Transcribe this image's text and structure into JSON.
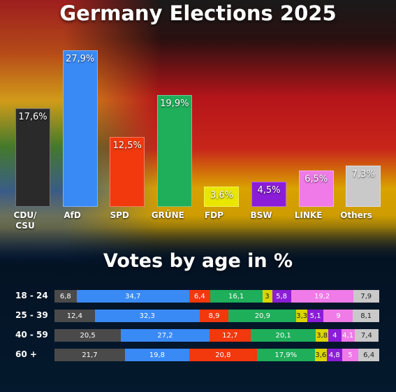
{
  "chart_data": [
    {
      "type": "bar",
      "title": "Germany Elections 2025",
      "categories": [
        "CDU/ CSU",
        "AfD",
        "SPD",
        "GRÜNE",
        "FDP",
        "BSW",
        "LINKE",
        "Others"
      ],
      "values": [
        17.6,
        27.9,
        12.5,
        19.9,
        3.6,
        4.5,
        6.5,
        7.3
      ],
      "value_labels": [
        "17,6%",
        "27,9%",
        "12,5%",
        "19,9%",
        "3,6%",
        "4,5%",
        "6,5%",
        "7,3%"
      ],
      "colors": [
        "#2a2a2a",
        "#3a8af5",
        "#f2380d",
        "#1fae5a",
        "#e9e600",
        "#8b1dd8",
        "#f07ae8",
        "#c9c9c9"
      ]
    },
    {
      "type": "stacked-barh",
      "title": "Votes by age in %",
      "categories": [
        "18 - 24",
        "25 - 39",
        "40 - 59",
        "60 +"
      ],
      "series": [
        {
          "color": "#4a4a4a",
          "values": [
            6.8,
            12.4,
            20.5,
            21.7
          ],
          "value_labels": [
            "6,8",
            "12,4",
            "20,5",
            "21,7"
          ]
        },
        {
          "color": "#3a8af5",
          "values": [
            34.7,
            32.3,
            27.2,
            19.8
          ],
          "value_labels": [
            "34,7",
            "32,3",
            "27,2",
            "19,8"
          ]
        },
        {
          "color": "#f2380d",
          "values": [
            6.4,
            8.9,
            12.7,
            20.8
          ],
          "value_labels": [
            "6,4",
            "8,9",
            "12,7",
            "20,8"
          ]
        },
        {
          "color": "#1fae5a",
          "values": [
            16.1,
            20.9,
            20.1,
            17.9
          ],
          "value_labels": [
            "16,1",
            "20,9",
            "20,1",
            "17,9%"
          ]
        },
        {
          "color": "#d9d600",
          "values": [
            3,
            3.3,
            3.8,
            3.6
          ],
          "value_labels": [
            "3",
            "3,3",
            "3,8",
            "3,6"
          ]
        },
        {
          "color": "#8b1dd8",
          "values": [
            5.8,
            5.1,
            4,
            4.8
          ],
          "value_labels": [
            "5,8",
            "5,1",
            "4",
            "4,8"
          ]
        },
        {
          "color": "#f07ae8",
          "values": [
            19.2,
            9,
            4.1,
            5
          ],
          "value_labels": [
            "19,2",
            "9",
            "4,1",
            "5"
          ]
        },
        {
          "color": "#c9c9c9",
          "values": [
            7.9,
            8.1,
            7.4,
            6.4
          ],
          "value_labels": [
            "7,9",
            "8,1",
            "7,4",
            "6,4"
          ]
        }
      ]
    }
  ]
}
